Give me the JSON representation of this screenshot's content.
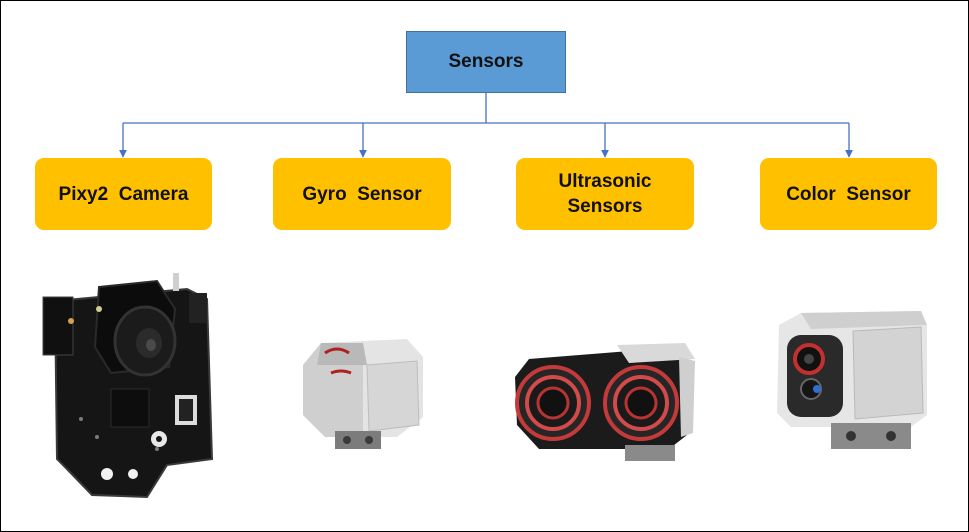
{
  "diagram": {
    "root": {
      "label": "Sensors"
    },
    "children": [
      {
        "label": "Pixy2  Camera",
        "image_icon": "pixy2-camera-board"
      },
      {
        "label": "Gyro  Sensor",
        "image_icon": "gyro-sensor-brick"
      },
      {
        "label": "Ultrasonic Sensors",
        "image_icon": "ultrasonic-sensor"
      },
      {
        "label": "Color  Sensor",
        "image_icon": "color-sensor"
      }
    ],
    "colors": {
      "root_fill": "#5b9bd5",
      "child_fill": "#ffc000",
      "connector": "#4472c4"
    }
  }
}
